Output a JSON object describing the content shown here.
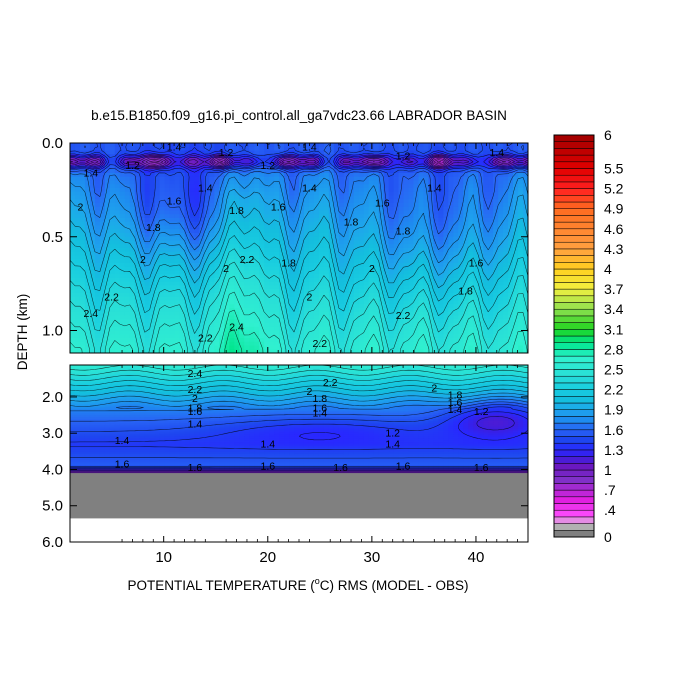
{
  "chart_data": {
    "type": "heatmap",
    "title": "b.e15.B1850.f09_g16.pi_control.all_ga7vdc23.66 LABRADOR BASIN",
    "xlabel_prefix": "POTENTIAL TEMPERATURE (",
    "xlabel_unit_deg": "o",
    "xlabel_unit_letter": "C",
    "xlabel_suffix": ") RMS (MODEL - OBS)",
    "ylabel": "DEPTH (km)",
    "xlim": [
      1,
      45
    ],
    "x_ticks": [
      "10",
      "20",
      "30",
      "40"
    ],
    "x_tick_values": [
      10,
      20,
      30,
      40
    ],
    "upper_panel": {
      "ylim": [
        0,
        1.12
      ],
      "y_ticks": [
        "0.0",
        "0.5",
        "1.0"
      ],
      "y_tick_values": [
        0.0,
        0.5,
        1.0
      ]
    },
    "lower_panel": {
      "ylim": [
        1.12,
        6.0
      ],
      "y_ticks": [
        "2.0",
        "3.0",
        "4.0",
        "5.0",
        "6.0"
      ],
      "y_tick_values": [
        2.0,
        3.0,
        4.0,
        5.0,
        6.0
      ],
      "seafloor_depth": 4.1,
      "nodata_bottom": 5.35
    },
    "colorbar": {
      "min": 0,
      "max": 6,
      "labels": [
        "6",
        "5.5",
        "5.2",
        "4.9",
        "4.6",
        "4.3",
        "4",
        "3.7",
        "3.4",
        "3.1",
        "2.8",
        "2.5",
        "2.2",
        "1.9",
        "1.6",
        "1.3",
        "1",
        ".7",
        ".4",
        "0"
      ],
      "label_values": [
        6,
        5.5,
        5.2,
        4.9,
        4.6,
        4.3,
        4,
        3.7,
        3.4,
        3.1,
        2.8,
        2.5,
        2.2,
        1.9,
        1.6,
        1.3,
        1,
        0.7,
        0.4,
        0
      ]
    },
    "contour_labels": [
      {
        "text": "1.4",
        "x": 11,
        "y": 0.02,
        "panel": "upper"
      },
      {
        "text": "1.2",
        "x": 16,
        "y": 0.05,
        "panel": "upper"
      },
      {
        "text": "1.4",
        "x": 24,
        "y": 0.02,
        "panel": "upper"
      },
      {
        "text": "1.2",
        "x": 33,
        "y": 0.07,
        "panel": "upper"
      },
      {
        "text": "1.4",
        "x": 42,
        "y": 0.05,
        "panel": "upper"
      },
      {
        "text": "1.4",
        "x": 3,
        "y": 0.16,
        "panel": "upper"
      },
      {
        "text": "1.2",
        "x": 7,
        "y": 0.12,
        "panel": "upper"
      },
      {
        "text": "1.2",
        "x": 20,
        "y": 0.12,
        "panel": "upper"
      },
      {
        "text": "1.4",
        "x": 14,
        "y": 0.24,
        "panel": "upper"
      },
      {
        "text": "1.4",
        "x": 24,
        "y": 0.24,
        "panel": "upper"
      },
      {
        "text": "1.4",
        "x": 36,
        "y": 0.24,
        "panel": "upper"
      },
      {
        "text": "1.6",
        "x": 11,
        "y": 0.31,
        "panel": "upper"
      },
      {
        "text": "1.6",
        "x": 21,
        "y": 0.34,
        "panel": "upper"
      },
      {
        "text": "1.6",
        "x": 31,
        "y": 0.32,
        "panel": "upper"
      },
      {
        "text": "2",
        "x": 2,
        "y": 0.34,
        "panel": "upper"
      },
      {
        "text": "1.8",
        "x": 9,
        "y": 0.45,
        "panel": "upper"
      },
      {
        "text": "1.8",
        "x": 17,
        "y": 0.36,
        "panel": "upper"
      },
      {
        "text": "1.8",
        "x": 28,
        "y": 0.42,
        "panel": "upper"
      },
      {
        "text": "1.8",
        "x": 33,
        "y": 0.47,
        "panel": "upper"
      },
      {
        "text": "2",
        "x": 8,
        "y": 0.62,
        "panel": "upper"
      },
      {
        "text": "2",
        "x": 16,
        "y": 0.67,
        "panel": "upper"
      },
      {
        "text": "2.2",
        "x": 18,
        "y": 0.62,
        "panel": "upper"
      },
      {
        "text": "1.8",
        "x": 22,
        "y": 0.64,
        "panel": "upper"
      },
      {
        "text": "2",
        "x": 30,
        "y": 0.67,
        "panel": "upper"
      },
      {
        "text": "1.6",
        "x": 40,
        "y": 0.64,
        "panel": "upper"
      },
      {
        "text": "2.2",
        "x": 5,
        "y": 0.82,
        "panel": "upper"
      },
      {
        "text": "2.4",
        "x": 3,
        "y": 0.91,
        "panel": "upper"
      },
      {
        "text": "2",
        "x": 24,
        "y": 0.82,
        "panel": "upper"
      },
      {
        "text": "2.2",
        "x": 33,
        "y": 0.92,
        "panel": "upper"
      },
      {
        "text": "1.8",
        "x": 39,
        "y": 0.79,
        "panel": "upper"
      },
      {
        "text": "2.4",
        "x": 17,
        "y": 0.98,
        "panel": "upper"
      },
      {
        "text": "2.2",
        "x": 14,
        "y": 1.04,
        "panel": "upper"
      },
      {
        "text": "2.2",
        "x": 25,
        "y": 1.07,
        "panel": "upper"
      },
      {
        "text": "2.4",
        "x": 13,
        "y": 1.35,
        "panel": "lower"
      },
      {
        "text": "2.2",
        "x": 26,
        "y": 1.6,
        "panel": "lower"
      },
      {
        "text": "2.2",
        "x": 13,
        "y": 1.8,
        "panel": "lower"
      },
      {
        "text": "2",
        "x": 24,
        "y": 1.85,
        "panel": "lower"
      },
      {
        "text": "2",
        "x": 36,
        "y": 1.75,
        "panel": "lower"
      },
      {
        "text": "2",
        "x": 13,
        "y": 2.05,
        "panel": "lower"
      },
      {
        "text": "1.8",
        "x": 25,
        "y": 2.05,
        "panel": "lower"
      },
      {
        "text": "1.8",
        "x": 38,
        "y": 1.95,
        "panel": "lower"
      },
      {
        "text": "1.8",
        "x": 13,
        "y": 2.3,
        "panel": "lower"
      },
      {
        "text": "1.6",
        "x": 25,
        "y": 2.3,
        "panel": "lower"
      },
      {
        "text": "1.6",
        "x": 38,
        "y": 2.15,
        "panel": "lower"
      },
      {
        "text": "1.6",
        "x": 13,
        "y": 2.4,
        "panel": "lower"
      },
      {
        "text": "1.4",
        "x": 25,
        "y": 2.45,
        "panel": "lower"
      },
      {
        "text": "1.4",
        "x": 38,
        "y": 2.35,
        "panel": "lower"
      },
      {
        "text": "1.2",
        "x": 40.5,
        "y": 2.4,
        "panel": "lower"
      },
      {
        "text": "1.4",
        "x": 13,
        "y": 2.75,
        "panel": "lower"
      },
      {
        "text": "1.2",
        "x": 32,
        "y": 3.0,
        "panel": "lower"
      },
      {
        "text": "1.4",
        "x": 6,
        "y": 3.2,
        "panel": "lower"
      },
      {
        "text": "1.4",
        "x": 20,
        "y": 3.3,
        "panel": "lower"
      },
      {
        "text": "1.4",
        "x": 32,
        "y": 3.3,
        "panel": "lower"
      },
      {
        "text": "1.6",
        "x": 6,
        "y": 3.85,
        "panel": "lower"
      },
      {
        "text": "1.6",
        "x": 20,
        "y": 3.9,
        "panel": "lower"
      },
      {
        "text": "1.6",
        "x": 33,
        "y": 3.9,
        "panel": "lower"
      },
      {
        "text": "1.6",
        "x": 13,
        "y": 3.95,
        "panel": "lower"
      },
      {
        "text": "1.6",
        "x": 27,
        "y": 3.95,
        "panel": "lower"
      },
      {
        "text": "1.6",
        "x": 40.5,
        "y": 3.95,
        "panel": "lower"
      }
    ]
  }
}
